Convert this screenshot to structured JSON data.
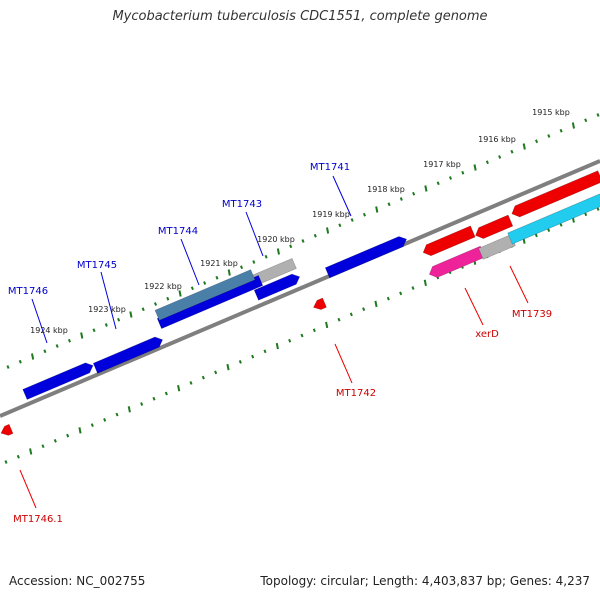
{
  "title": "Mycobacterium tuberculosis CDC1551, complete genome",
  "footer": {
    "accession": "Accession: NC_002755",
    "topology": "Topology: circular; Length: 4,403,837 bp; Genes: 4,237"
  },
  "colors": {
    "backbone": "#7f7f7f",
    "tick_green": "#1f7a1f",
    "forward_gene": "#0000dd",
    "forward_label": "#0000cc",
    "reverse_gene": "#ee0000",
    "reverse_label": "#cc0000",
    "steelblue_gene": "#4a7fa8",
    "gray_gene": "#b0b0b0",
    "cyan_gene": "#22ccee",
    "pink_gene": "#ee2299"
  },
  "scale_labels": [
    "1915 kbp",
    "1916 kbp",
    "1917 kbp",
    "1918 kbp",
    "1919 kbp",
    "1920 kbp",
    "1921 kbp",
    "1922 kbp",
    "1923 kbp",
    "1924 kbp"
  ],
  "forward_gene_labels": [
    "MT1741",
    "MT1743",
    "MT1744",
    "MT1745",
    "MT1746"
  ],
  "reverse_gene_labels": [
    "MT1739",
    "xerD",
    "MT1742",
    "MT1746.1"
  ]
}
